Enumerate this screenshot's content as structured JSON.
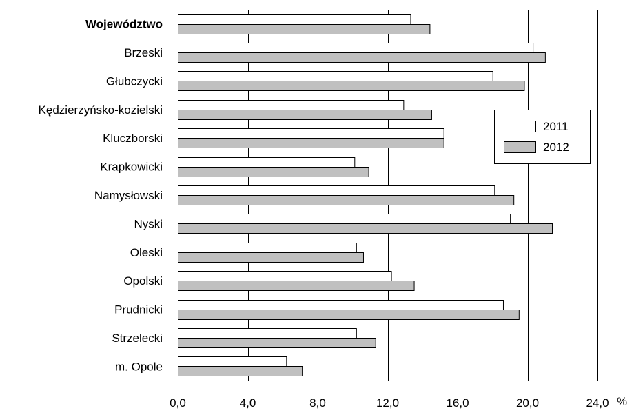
{
  "chart_data": {
    "type": "bar",
    "orientation": "horizontal",
    "categories": [
      "Województwo",
      "Brzeski",
      "Głubczycki",
      "Kędzierzyńsko-kozielski",
      "Kluczborski",
      "Krapkowicki",
      "Namysłowski",
      "Nyski",
      "Oleski",
      "Opolski",
      "Prudnicki",
      "Strzelecki",
      "m. Opole"
    ],
    "bold_categories": [
      "Województwo"
    ],
    "series": [
      {
        "name": "2011",
        "color": "#ffffff",
        "values": [
          13.3,
          20.3,
          18.0,
          12.9,
          15.2,
          10.1,
          18.1,
          19.0,
          10.2,
          12.2,
          18.6,
          10.2,
          6.2
        ]
      },
      {
        "name": "2012",
        "color": "#c0c0c0",
        "values": [
          14.4,
          21.0,
          19.8,
          14.5,
          15.2,
          10.9,
          19.2,
          21.4,
          10.6,
          13.5,
          19.5,
          11.3,
          7.1
        ]
      }
    ],
    "xlim": [
      0,
      24
    ],
    "xticks": [
      "0,0",
      "4,0",
      "8,0",
      "12,0",
      "16,0",
      "20,0",
      "24,0"
    ],
    "x_unit": "%",
    "grid": "vertical",
    "legend_position": "right"
  }
}
